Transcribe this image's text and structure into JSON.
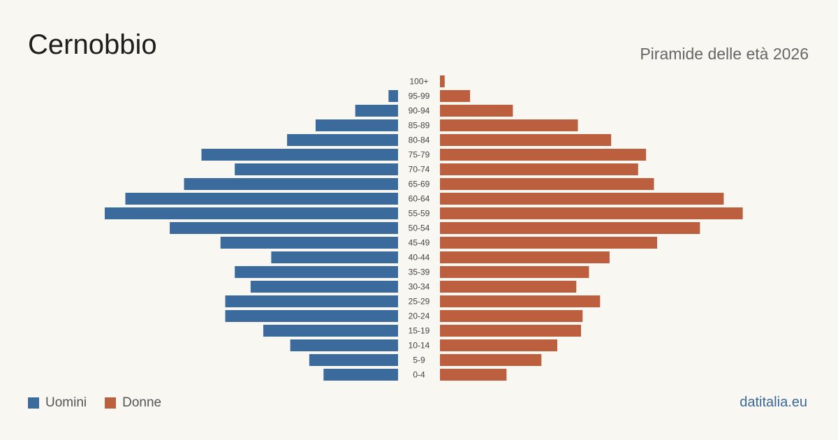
{
  "header": {
    "title": "Cernobbio",
    "subtitle": "Piramide delle età 2026"
  },
  "legend": {
    "men_label": "Uomini",
    "women_label": "Donne"
  },
  "footer": {
    "source": "datitalia.eu"
  },
  "colors": {
    "men": "#3b6b9c",
    "women": "#bc5f3f"
  },
  "chart_data": {
    "type": "bar",
    "orientation": "horizontal",
    "layout": "population-pyramid",
    "categories": [
      "100+",
      "95-99",
      "90-94",
      "85-89",
      "80-84",
      "75-79",
      "70-74",
      "65-69",
      "60-64",
      "55-59",
      "50-54",
      "45-49",
      "40-44",
      "35-39",
      "30-34",
      "25-29",
      "20-24",
      "15-19",
      "10-14",
      "5-9",
      "0-4"
    ],
    "series": [
      {
        "name": "Uomini",
        "values": [
          0,
          6,
          27,
          52,
          70,
          124,
          103,
          135,
          172,
          185,
          144,
          112,
          80,
          103,
          93,
          109,
          109,
          85,
          68,
          56,
          47
        ]
      },
      {
        "name": "Donne",
        "values": [
          3,
          19,
          46,
          87,
          108,
          130,
          125,
          135,
          179,
          191,
          164,
          137,
          107,
          94,
          86,
          101,
          90,
          89,
          74,
          64,
          42
        ]
      }
    ]
  }
}
